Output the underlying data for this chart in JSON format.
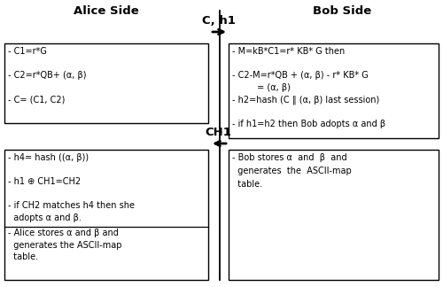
{
  "alice_header": "Alice Side",
  "bob_header": "Bob Side",
  "alice_box1_lines": [
    "- C1=r*G",
    "",
    "- C2=r*QB+ (α, β)",
    "",
    "- C= (C1, C2)"
  ],
  "bob_box1_lines": [
    "- M=kB*C1=r* KB* G then",
    "",
    "- C2-M=r*QB + (α, β) - r* KB* G",
    "         = (α, β)",
    "- h2=hash (C ‖ (α, β) last session)",
    "",
    "- if h1=h2 then Bob adopts α and β"
  ],
  "alice_box2a_lines": [
    "- h4= hash ((α, β))",
    "",
    "- h1 ⊕ CH1=CH2",
    "",
    "- if CH2 matches h4 then she",
    "  adopts α and β."
  ],
  "alice_box2b_lines": [
    "- Alice stores α and β and",
    "  generates the ASCII-map",
    "  table."
  ],
  "bob_box2_lines": [
    "- Bob stores α  and  β  and",
    "  generates  the  ASCII-map",
    "  table."
  ],
  "arrow1_label": "C, h1",
  "arrow2_label": "CH1",
  "bg_color": "#ffffff",
  "box_edge_color": "#000000",
  "text_color": "#000000",
  "header_fontsize": 9.5,
  "body_fontsize": 7.0,
  "arrow_fontsize": 9.5
}
